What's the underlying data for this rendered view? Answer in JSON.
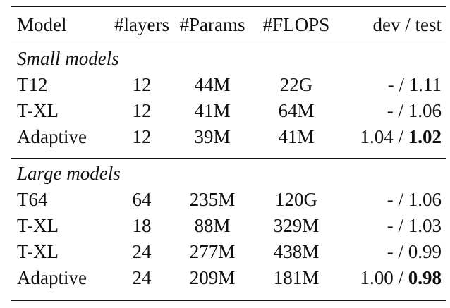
{
  "table": {
    "headers": [
      "Model",
      "#layers",
      "#Params",
      "#FLOPS",
      "dev / test"
    ],
    "sections": [
      {
        "label": "Small models",
        "rows": [
          {
            "model": "T12",
            "layers": "12",
            "params": "44M",
            "flops": "22G",
            "dev": "- / ",
            "test": "1.11",
            "test_bold": false
          },
          {
            "model": "T-XL",
            "layers": "12",
            "params": "41M",
            "flops": "64M",
            "dev": "- / ",
            "test": "1.06",
            "test_bold": false
          },
          {
            "model": "Adaptive",
            "layers": "12",
            "params": "39M",
            "flops": "41M",
            "dev": "1.04 / ",
            "test": "1.02",
            "test_bold": true
          }
        ]
      },
      {
        "label": "Large models",
        "rows": [
          {
            "model": "T64",
            "layers": "64",
            "params": "235M",
            "flops": "120G",
            "dev": "- / ",
            "test": "1.06",
            "test_bold": false
          },
          {
            "model": "T-XL",
            "layers": "18",
            "params": "88M",
            "flops": "329M",
            "dev": "- / ",
            "test": "1.03",
            "test_bold": false
          },
          {
            "model": "T-XL",
            "layers": "24",
            "params": "277M",
            "flops": "438M",
            "dev": "- / ",
            "test": "0.99",
            "test_bold": false
          },
          {
            "model": "Adaptive",
            "layers": "24",
            "params": "209M",
            "flops": "181M",
            "dev": "1.00 / ",
            "test": "0.98",
            "test_bold": true
          }
        ]
      }
    ]
  }
}
